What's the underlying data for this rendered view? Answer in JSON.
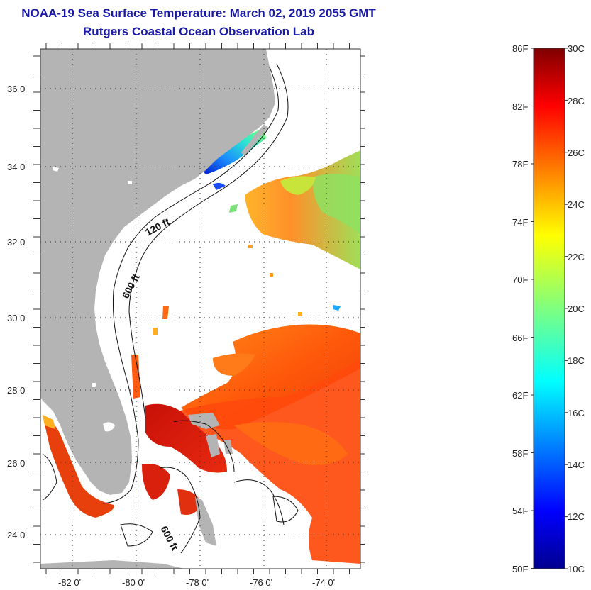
{
  "header": {
    "title": "NOAA-19 Sea Surface Temperature:  March 02, 2019 2055 GMT",
    "subtitle": "Rutgers Coastal Ocean Observation Lab"
  },
  "map": {
    "lat_ticks": [
      "24 0'",
      "26 0'",
      "28 0'",
      "30 0'",
      "32 0'",
      "34 0'",
      "36 0'"
    ],
    "lon_ticks": [
      "-82 0'",
      "-80 0'",
      "-78 0'",
      "-76 0'",
      "-74 0'"
    ],
    "contour_labels": [
      "120 ft",
      "600 ft",
      "600 ft"
    ],
    "land_color": "#b4b4b4",
    "water_missing_color": "#ffffff"
  },
  "colorbar": {
    "fahrenheit_labels": [
      "86F",
      "82F",
      "78F",
      "74F",
      "70F",
      "66F",
      "62F",
      "58F",
      "54F",
      "50F"
    ],
    "celsius_labels": [
      "30C",
      "28C",
      "26C",
      "24C",
      "22C",
      "20C",
      "18C",
      "16C",
      "14C",
      "12C",
      "10C"
    ],
    "range_c": [
      10,
      30
    ],
    "range_f": [
      50,
      86
    ]
  }
}
